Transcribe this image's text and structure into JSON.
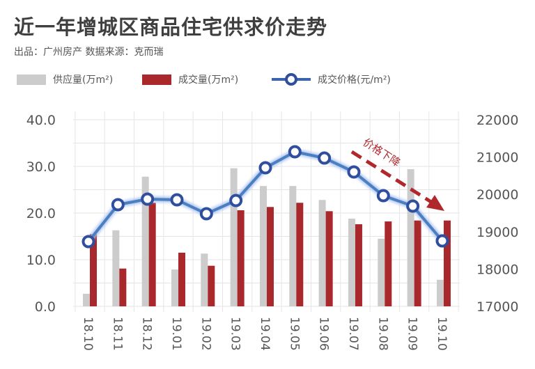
{
  "title": "近一年增城区商品住宅供求价走势",
  "subtitle": "出品：广州房产  数据来源：克而瑞",
  "colors": {
    "supply": "#cccccc",
    "deal": "#a8282c",
    "price_line": "#4a7fc0",
    "price_marker": "#2f4f9e",
    "annotation": "#b0282c"
  },
  "chart_data": {
    "type": "bar+line",
    "categories": [
      "18.10",
      "18.11",
      "18.12",
      "19.01",
      "19.02",
      "19.03",
      "19.04",
      "19.05",
      "19.06",
      "19.07",
      "19.08",
      "19.09",
      "19.10"
    ],
    "series": [
      {
        "name": "供应量(万m²)",
        "type": "bar",
        "axis": "left",
        "values": [
          2.7,
          16.3,
          27.8,
          7.9,
          11.3,
          29.6,
          25.8,
          25.8,
          22.8,
          18.8,
          14.5,
          29.4,
          5.7
        ]
      },
      {
        "name": "成交量(万m²)",
        "type": "bar",
        "axis": "left",
        "values": [
          15.5,
          8.1,
          22.2,
          11.5,
          8.7,
          20.6,
          21.3,
          22.2,
          20.4,
          17.6,
          18.2,
          18.4,
          18.4
        ]
      },
      {
        "name": "成交价格(元/m²)",
        "type": "line",
        "axis": "right",
        "values": [
          18735,
          19724,
          19873,
          19854,
          19481,
          19836,
          20713,
          21142,
          20974,
          20601,
          19966,
          19687,
          18754
        ]
      }
    ],
    "left_axis": {
      "ylim": [
        0,
        40
      ],
      "ticks": [
        "0.0",
        "10.0",
        "20.0",
        "30.0",
        "40.0"
      ]
    },
    "right_axis": {
      "ylim": [
        17000,
        22000
      ],
      "ticks": [
        "17000",
        "18000",
        "19000",
        "20000",
        "21000",
        "22000"
      ]
    },
    "annotation": "价格下降",
    "legend": "top",
    "grid": true
  }
}
